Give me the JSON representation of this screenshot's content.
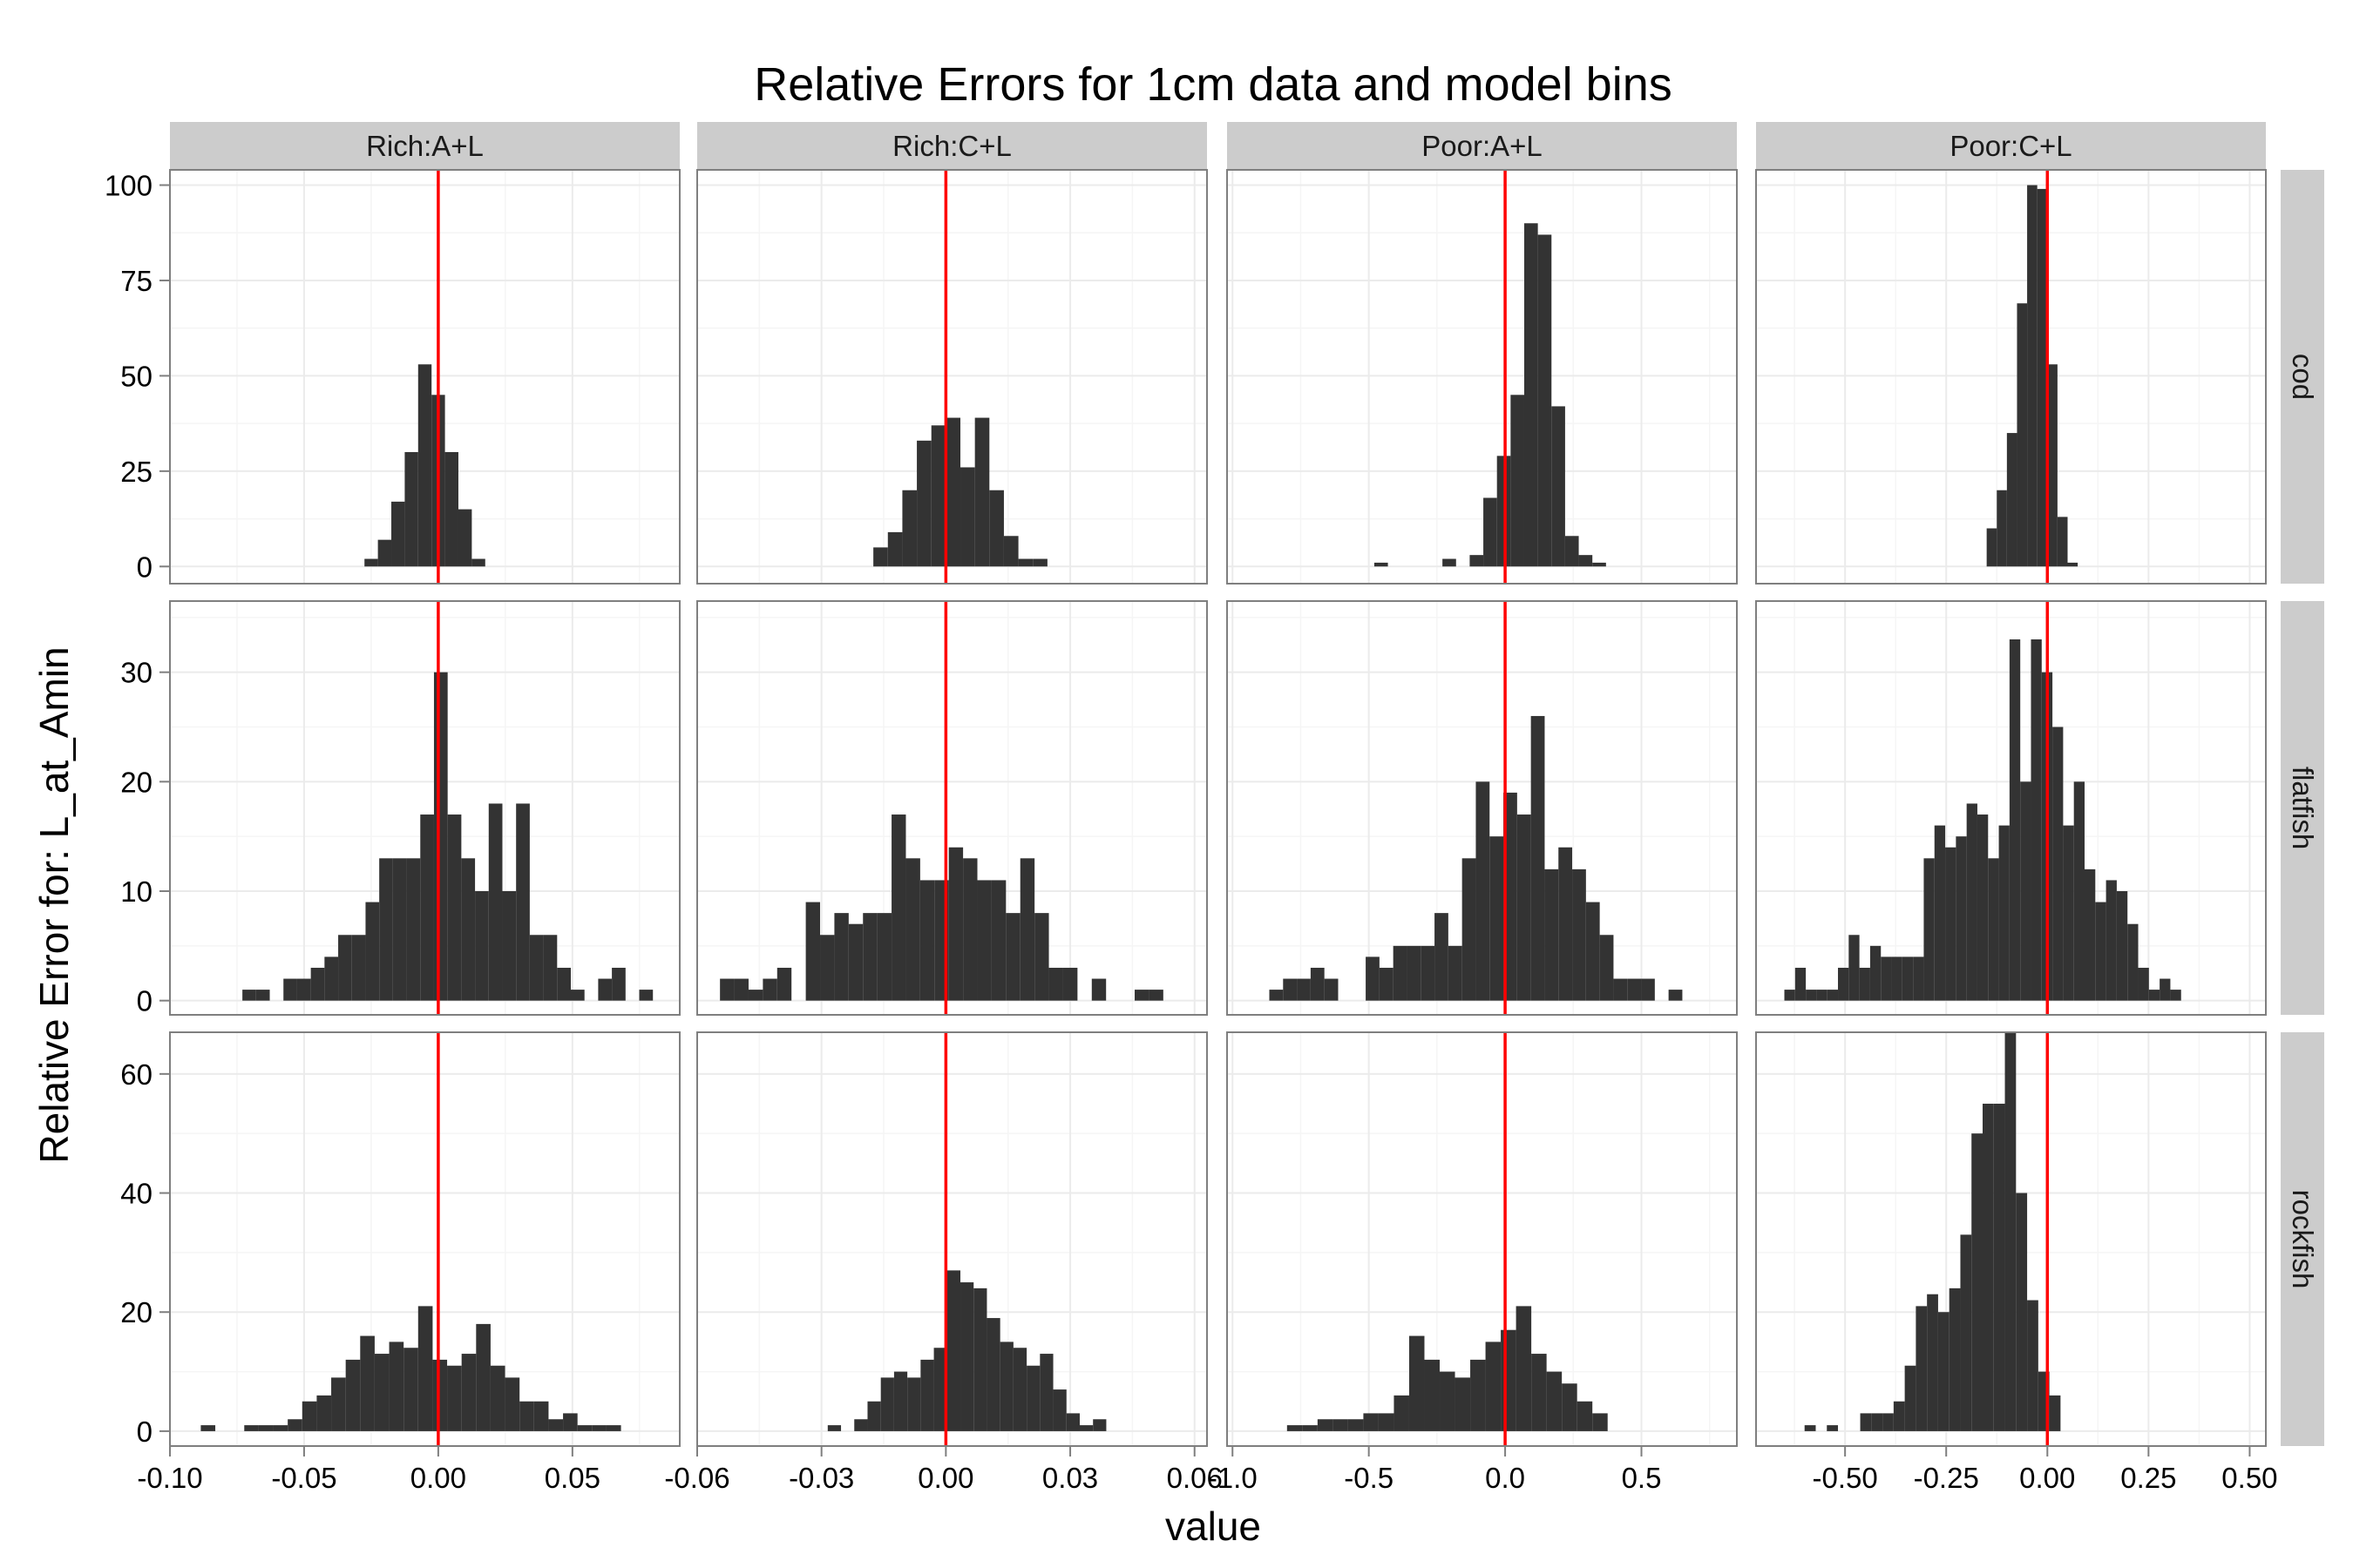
{
  "chart_data": {
    "type": "histogram-facet-grid",
    "title": "Relative Errors for 1cm data and model bins",
    "xlabel": "value",
    "ylabel": "Relative Error for: L_at_Amin",
    "reference_line": {
      "x": 0,
      "color": "#ff0000"
    },
    "bar_color": "#333333",
    "strip_color": "#cccccc",
    "panel_background": "#ffffff",
    "grid_color": "#ebebeb",
    "columns": [
      {
        "label": "Rich:A+L",
        "xlim": [
          -0.1,
          0.09
        ],
        "ticks": [
          -0.1,
          -0.05,
          0.0,
          0.05
        ],
        "tick_labels": [
          "-0.10",
          "-0.05",
          "0.00",
          "0.05"
        ]
      },
      {
        "label": "Rich:C+L",
        "xlim": [
          -0.06,
          0.063
        ],
        "ticks": [
          -0.06,
          -0.03,
          0.0,
          0.03,
          0.06
        ],
        "tick_labels": [
          "-0.06",
          "-0.03",
          "0.00",
          "0.03",
          "0.06"
        ]
      },
      {
        "label": "Poor:A+L",
        "xlim": [
          -1.02,
          0.85
        ],
        "ticks": [
          -1.0,
          -0.5,
          0.0,
          0.5
        ],
        "tick_labels": [
          "-1.0",
          "-0.5",
          "0.0",
          "0.5"
        ]
      },
      {
        "label": "Poor:C+L",
        "xlim": [
          -0.72,
          0.54
        ],
        "ticks": [
          -0.5,
          -0.25,
          0.0,
          0.25,
          0.5
        ],
        "tick_labels": [
          "-0.50",
          "-0.25",
          "0.00",
          "0.25",
          "0.50"
        ]
      }
    ],
    "rows": [
      {
        "label": "cod",
        "ylim": [
          -4.5,
          104
        ],
        "ticks": [
          0,
          25,
          50,
          75,
          100
        ],
        "tick_labels": [
          "0",
          "25",
          "50",
          "75",
          "100"
        ]
      },
      {
        "label": "flatfish",
        "ylim": [
          -1.3,
          36.5
        ],
        "ticks": [
          0,
          10,
          20,
          30
        ],
        "tick_labels": [
          "0",
          "10",
          "20",
          "30"
        ]
      },
      {
        "label": "rockfish",
        "ylim": [
          -2.5,
          67
        ],
        "ticks": [
          0,
          20,
          40,
          60
        ],
        "tick_labels": [
          "0",
          "20",
          "40",
          "60"
        ]
      }
    ],
    "panels": [
      {
        "row": "cod",
        "col": "Rich:A+L",
        "start": -0.0275,
        "binwidth": 0.005,
        "counts": [
          2,
          7,
          17,
          30,
          53,
          45,
          30,
          15,
          2
        ]
      },
      {
        "row": "cod",
        "col": "Rich:C+L",
        "start": -0.0175,
        "binwidth": 0.0035,
        "counts": [
          5,
          9,
          20,
          33,
          37,
          39,
          26,
          39,
          20,
          8,
          2,
          2
        ]
      },
      {
        "row": "cod",
        "col": "Poor:A+L",
        "start": -0.48,
        "binwidth": 0.05,
        "counts": [
          1,
          0,
          0,
          0,
          0,
          2,
          0,
          3,
          18,
          29,
          45,
          90,
          87,
          42,
          8,
          3,
          1
        ]
      },
      {
        "row": "cod",
        "col": "Poor:C+L",
        "start": -0.15,
        "binwidth": 0.025,
        "counts": [
          10,
          20,
          35,
          69,
          100,
          99,
          53,
          13,
          1
        ]
      },
      {
        "row": "flatfish",
        "col": "Rich:A+L",
        "start": -0.073,
        "binwidth": 0.0051,
        "counts": [
          1,
          1,
          0,
          2,
          2,
          3,
          4,
          6,
          6,
          9,
          13,
          13,
          13,
          17,
          30,
          17,
          13,
          10,
          18,
          10,
          18,
          6,
          6,
          3,
          1,
          0,
          2,
          3,
          0,
          1
        ]
      },
      {
        "row": "flatfish",
        "col": "Rich:C+L",
        "start": -0.0545,
        "binwidth": 0.00345,
        "counts": [
          2,
          2,
          1,
          2,
          3,
          0,
          9,
          6,
          8,
          7,
          8,
          8,
          17,
          13,
          11,
          11,
          14,
          13,
          11,
          11,
          8,
          13,
          8,
          3,
          3,
          0,
          2,
          0,
          0,
          1,
          1
        ]
      },
      {
        "row": "flatfish",
        "col": "Poor:A+L",
        "start": -0.865,
        "binwidth": 0.0505,
        "counts": [
          1,
          2,
          2,
          3,
          2,
          0,
          0,
          4,
          3,
          5,
          5,
          5,
          8,
          5,
          13,
          20,
          15,
          19,
          17,
          26,
          12,
          14,
          12,
          9,
          6,
          2,
          2,
          2,
          0,
          1
        ]
      },
      {
        "row": "flatfish",
        "col": "Poor:C+L",
        "start": -0.65,
        "binwidth": 0.0265,
        "counts": [
          1,
          3,
          1,
          1,
          1,
          3,
          6,
          3,
          5,
          4,
          4,
          4,
          4,
          13,
          16,
          14,
          15,
          18,
          17,
          13,
          16,
          33,
          20,
          33,
          30,
          25,
          16,
          20,
          12,
          9,
          11,
          10,
          7,
          3,
          1,
          2,
          1
        ]
      },
      {
        "row": "rockfish",
        "col": "Rich:A+L",
        "start": -0.0885,
        "binwidth": 0.0054,
        "counts": [
          1,
          0,
          0,
          1,
          1,
          1,
          2,
          5,
          6,
          9,
          12,
          16,
          13,
          15,
          14,
          21,
          12,
          11,
          13,
          18,
          11,
          9,
          5,
          5,
          2,
          3,
          1,
          1,
          1
        ]
      },
      {
        "row": "rockfish",
        "col": "Rich:C+L",
        "start": -0.0285,
        "binwidth": 0.0032,
        "counts": [
          1,
          0,
          2,
          5,
          9,
          10,
          9,
          12,
          14,
          27,
          25,
          24,
          19,
          15,
          14,
          11,
          13,
          7,
          3,
          1,
          2
        ]
      },
      {
        "row": "rockfish",
        "col": "Poor:A+L",
        "start": -0.8,
        "binwidth": 0.056,
        "counts": [
          1,
          1,
          2,
          2,
          2,
          3,
          3,
          6,
          16,
          12,
          10,
          9,
          12,
          15,
          17,
          21,
          13,
          10,
          8,
          5,
          3
        ]
      },
      {
        "row": "rockfish",
        "col": "Poor:C+L",
        "start": -0.6,
        "binwidth": 0.0275,
        "counts": [
          1,
          0,
          1,
          0,
          0,
          3,
          3,
          3,
          5,
          11,
          21,
          23,
          20,
          24,
          33,
          50,
          55,
          55,
          67,
          40,
          22,
          10,
          6
        ]
      }
    ]
  }
}
